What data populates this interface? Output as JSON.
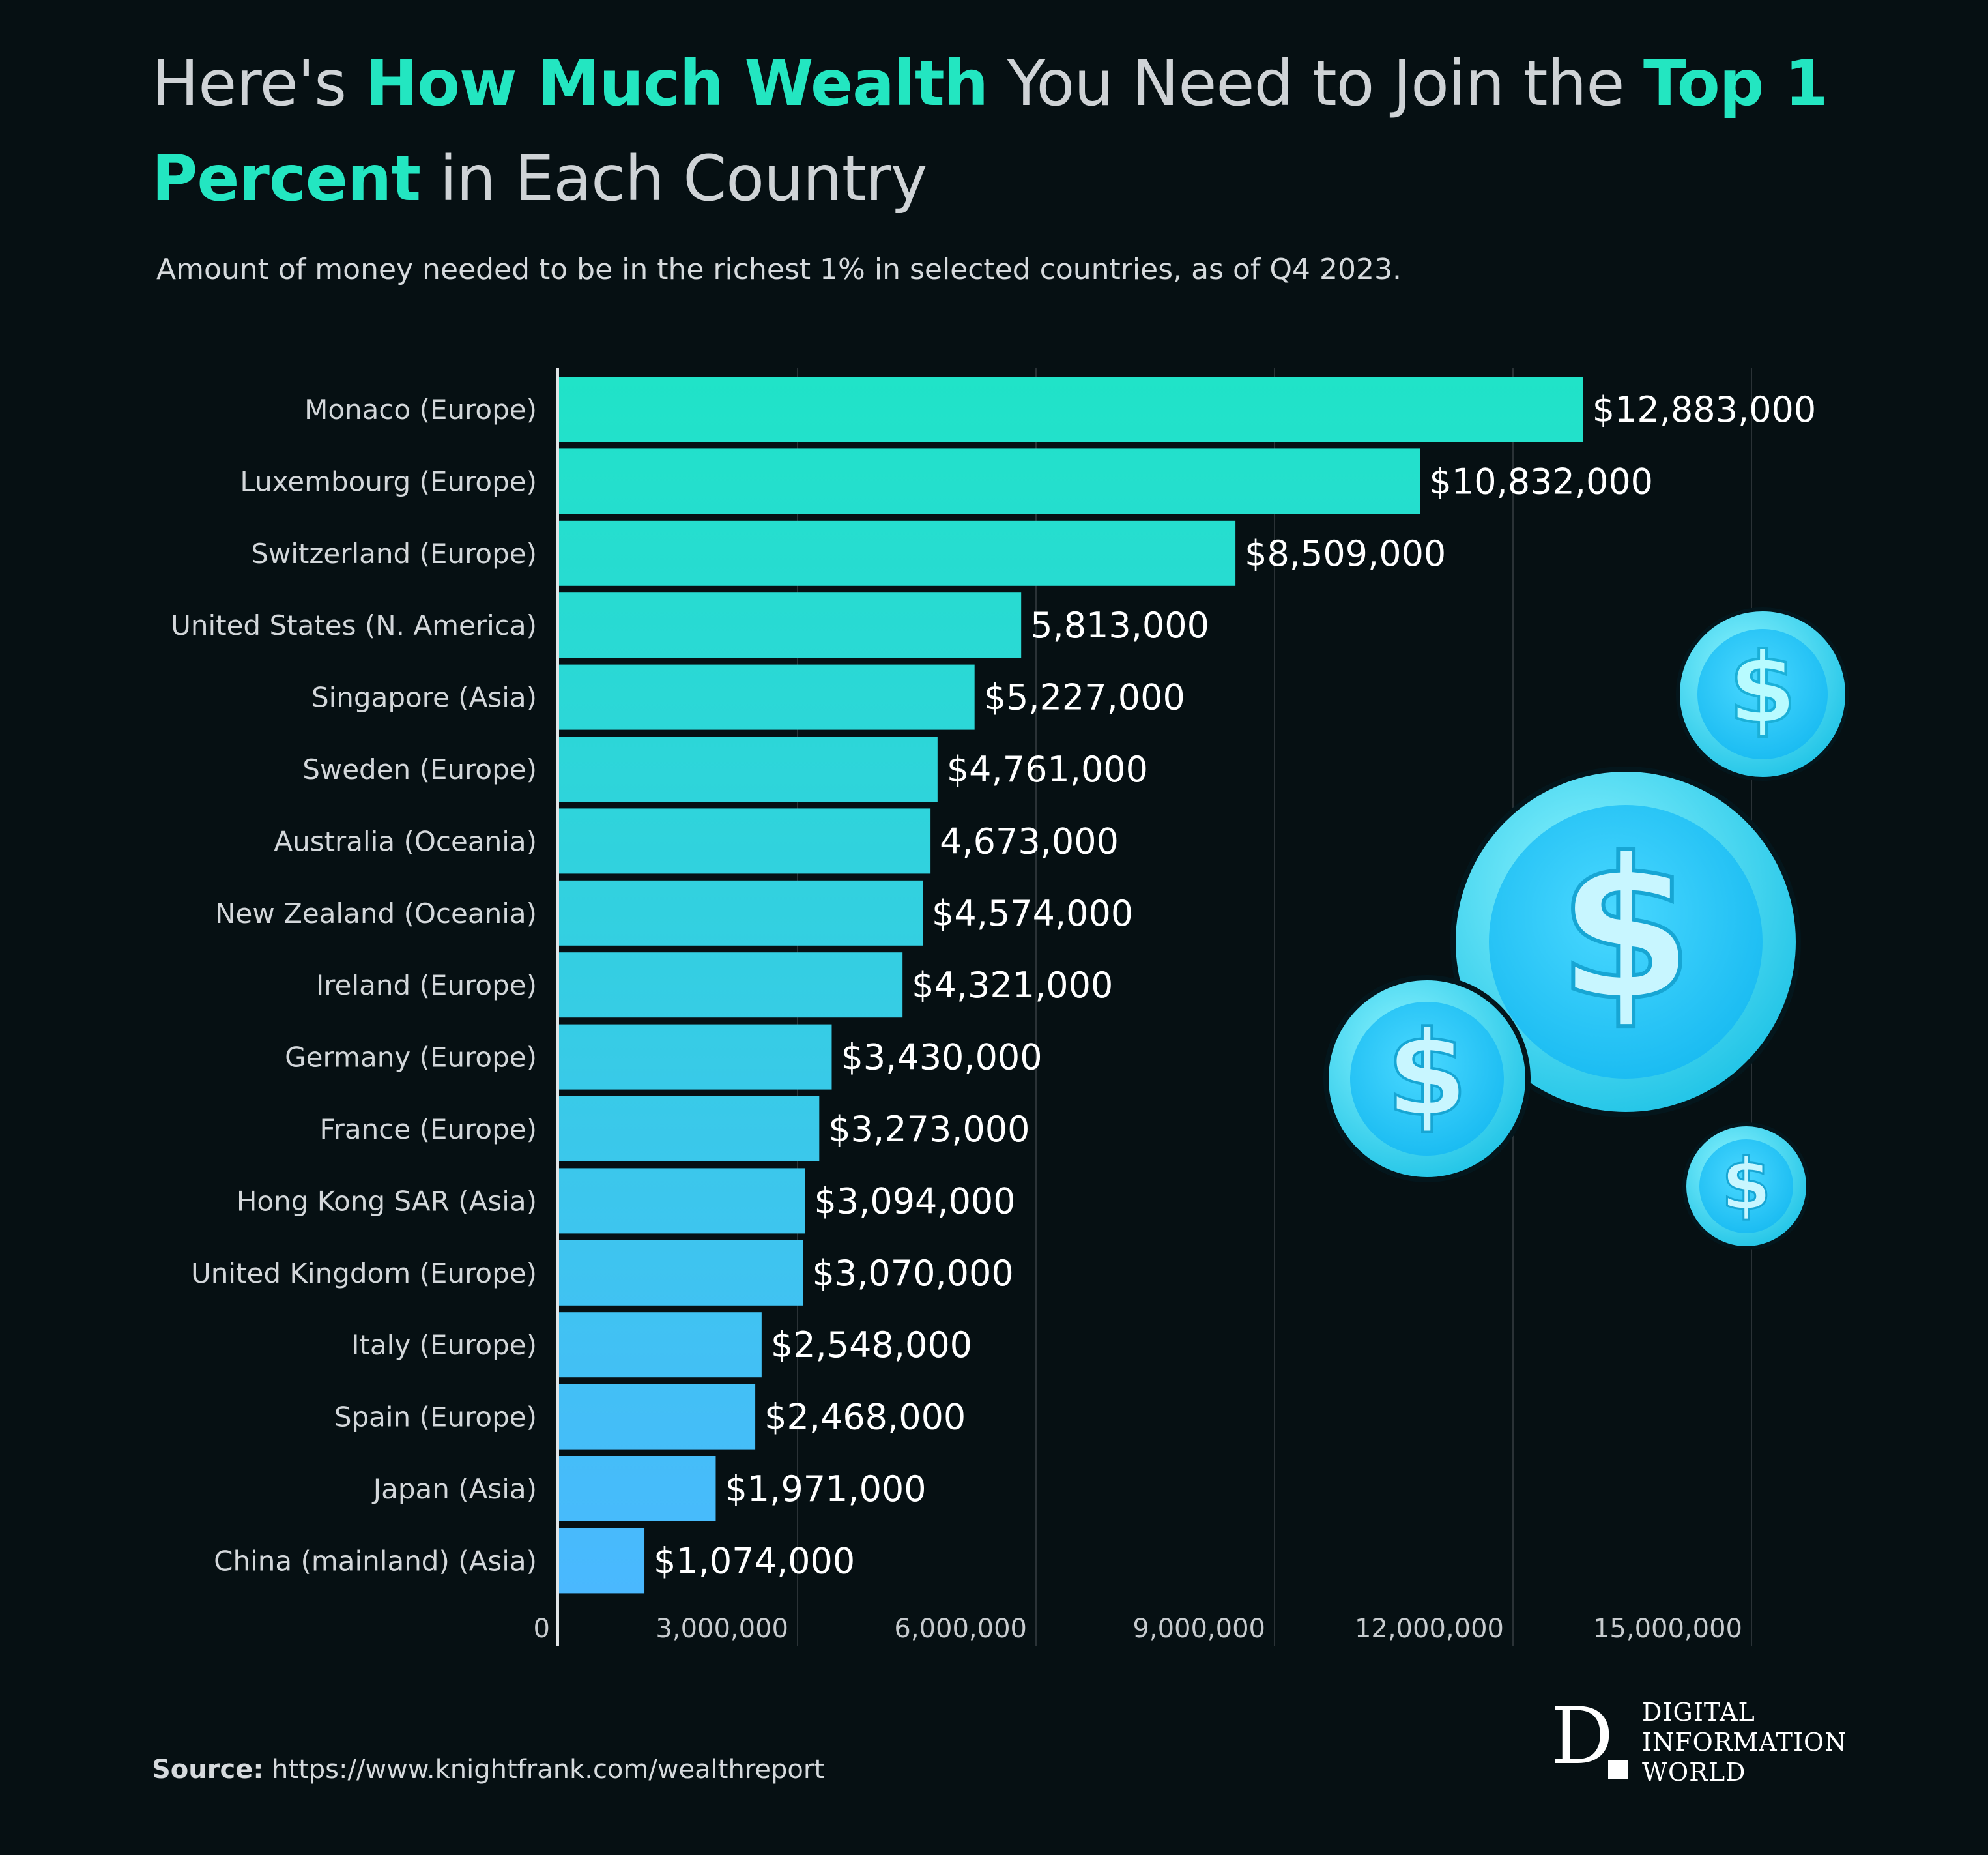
{
  "title": {
    "part1": "Here's ",
    "part2": "How Much Wealth",
    "part3": " You Need to Join the ",
    "part4": "Top 1 Percent",
    "part5": " in Each Country"
  },
  "subtitle": "Amount of money needed to be in the richest 1% in selected countries, as of Q4 2023.",
  "source": {
    "label": "Source:",
    "url": "https://www.knightfrank.com/wealthreport"
  },
  "logo": {
    "letter": "D",
    "line1": "DIGITAL",
    "line2": "INFORMATION",
    "line3": "WORLD"
  },
  "colors": {
    "accent": "#23e6c1",
    "bar_top": "#20e3c8",
    "bar_bottom": "#4ab8ff",
    "background": "#061013"
  },
  "decoration_icons": [
    "dollar-coin-icon",
    "dollar-coin-icon",
    "dollar-coin-icon",
    "dollar-coin-icon"
  ],
  "chart_data": {
    "type": "bar",
    "orientation": "horizontal",
    "title": "Here's How Much Wealth You Need to Join the Top 1 Percent in Each Country",
    "xlabel": "",
    "ylabel": "",
    "xlim": [
      0,
      15000000
    ],
    "grid": true,
    "x_ticks": [
      {
        "value": 0,
        "label": "0"
      },
      {
        "value": 3000000,
        "label": "3,000,000"
      },
      {
        "value": 6000000,
        "label": "6,000,000"
      },
      {
        "value": 9000000,
        "label": "9,000,000"
      },
      {
        "value": 12000000,
        "label": "12,000,000"
      },
      {
        "value": 15000000,
        "label": "15,000,000"
      }
    ],
    "categories": [
      "Monaco (Europe)",
      "Luxembourg (Europe)",
      "Switzerland (Europe)",
      "United States (N. America)",
      "Singapore (Asia)",
      "Sweden (Europe)",
      "Australia (Oceania)",
      "New Zealand (Oceania)",
      "Ireland (Europe)",
      "Germany (Europe)",
      "France (Europe)",
      "Hong Kong SAR (Asia)",
      "United Kingdom (Europe)",
      "Italy (Europe)",
      "Spain (Europe)",
      "Japan (Asia)",
      "China (mainland) (Asia)"
    ],
    "values": [
      12883000,
      10832000,
      8509000,
      5813000,
      5227000,
      4761000,
      4673000,
      4574000,
      4321000,
      3430000,
      3273000,
      3094000,
      3070000,
      2548000,
      2468000,
      1971000,
      1074000
    ],
    "value_labels": [
      "$12,883,000",
      "$10,832,000",
      "$8,509,000",
      "5,813,000",
      "$5,227,000",
      "$4,761,000",
      "4,673,000",
      "$4,574,000",
      "$4,321,000",
      "$3,430,000",
      "$3,273,000",
      "$3,094,000",
      "$3,070,000",
      "$2,548,000",
      "$2,468,000",
      "$1,971,000",
      "$1,074,000"
    ]
  }
}
